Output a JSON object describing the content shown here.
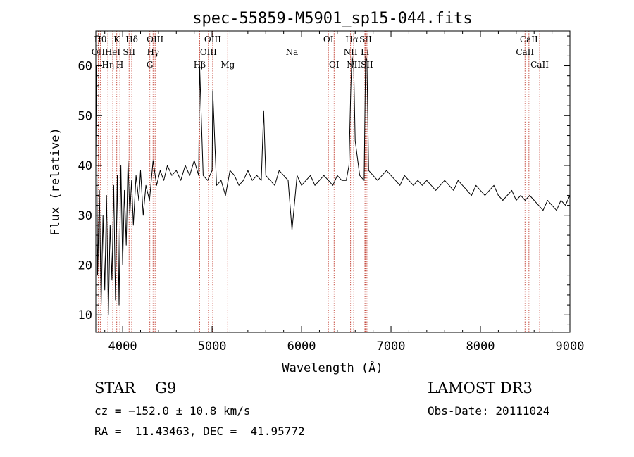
{
  "chart_data": {
    "type": "line",
    "title": "spec-55859-M5901_sp15-044.fits",
    "xlabel": "Wavelength (Å)",
    "ylabel": "Flux (relative)",
    "xlim": [
      3700,
      9000
    ],
    "ylim": [
      6.5,
      67
    ],
    "x_ticks": [
      4000,
      5000,
      6000,
      7000,
      8000,
      9000
    ],
    "y_ticks": [
      10,
      20,
      30,
      40,
      50,
      60
    ],
    "grid": false,
    "series": [
      {
        "name": "",
        "x": [
          3705,
          3720,
          3740,
          3760,
          3780,
          3800,
          3820,
          3840,
          3860,
          3880,
          3900,
          3920,
          3940,
          3960,
          3980,
          4000,
          4020,
          4040,
          4060,
          4080,
          4100,
          4120,
          4150,
          4180,
          4200,
          4230,
          4260,
          4300,
          4340,
          4380,
          4420,
          4460,
          4500,
          4550,
          4600,
          4650,
          4700,
          4750,
          4800,
          4850,
          4861,
          4900,
          4950,
          5000,
          5007,
          5050,
          5100,
          5150,
          5200,
          5250,
          5300,
          5350,
          5400,
          5450,
          5500,
          5550,
          5577,
          5600,
          5650,
          5700,
          5750,
          5800,
          5850,
          5893,
          5950,
          6000,
          6050,
          6100,
          6150,
          6200,
          6250,
          6300,
          6350,
          6400,
          6450,
          6500,
          6530,
          6550,
          6563,
          6583,
          6600,
          6650,
          6700,
          6716,
          6731,
          6750,
          6800,
          6850,
          6900,
          6950,
          7000,
          7050,
          7100,
          7150,
          7200,
          7250,
          7300,
          7350,
          7400,
          7450,
          7500,
          7550,
          7600,
          7650,
          7700,
          7750,
          7800,
          7850,
          7900,
          7950,
          8000,
          8050,
          8100,
          8150,
          8200,
          8250,
          8300,
          8350,
          8400,
          8450,
          8500,
          8550,
          8600,
          8650,
          8700,
          8750,
          8800,
          8850,
          8900,
          8950,
          9000
        ],
        "y": [
          60,
          18,
          35,
          12,
          30,
          15,
          34,
          10,
          28,
          17,
          36,
          13,
          38,
          12,
          40,
          20,
          35,
          24,
          41,
          30,
          37,
          28,
          38,
          33,
          39,
          30,
          36,
          33,
          41,
          36,
          39,
          37,
          40,
          38,
          39,
          37,
          40,
          38,
          41,
          38,
          60,
          38,
          37,
          39,
          55,
          36,
          37,
          34,
          39,
          38,
          36,
          37,
          39,
          37,
          38,
          37,
          51,
          38,
          37,
          36,
          39,
          38,
          37,
          27,
          38,
          36,
          37,
          38,
          36,
          37,
          38,
          37,
          36,
          38,
          37,
          37,
          40,
          55,
          62,
          60,
          45,
          38,
          37,
          62,
          61,
          39,
          38,
          37,
          38,
          39,
          38,
          37,
          36,
          38,
          37,
          36,
          37,
          36,
          37,
          36,
          35,
          36,
          37,
          36,
          35,
          37,
          36,
          35,
          34,
          36,
          35,
          34,
          35,
          36,
          34,
          33,
          34,
          35,
          33,
          34,
          33,
          34,
          33,
          32,
          31,
          33,
          32,
          31,
          33,
          32,
          34
        ]
      }
    ],
    "line_markers": [
      {
        "label": "OII",
        "wavelength": 3727,
        "row": 1
      },
      {
        "label": "Hθ",
        "wavelength": 3750,
        "row": 0
      },
      {
        "label": "Hη",
        "wavelength": 3835,
        "row": 2
      },
      {
        "label": "HeI",
        "wavelength": 3889,
        "row": 1
      },
      {
        "label": "K",
        "wavelength": 3934,
        "row": 0
      },
      {
        "label": "H",
        "wavelength": 3969,
        "row": 2
      },
      {
        "label": "SII",
        "wavelength": 4072,
        "row": 1
      },
      {
        "label": "Hδ",
        "wavelength": 4102,
        "row": 0
      },
      {
        "label": "OIII",
        "wavelength": 4363,
        "row": 0
      },
      {
        "label": "Hγ",
        "wavelength": 4340,
        "row": 1
      },
      {
        "label": "G",
        "wavelength": 4304,
        "row": 2
      },
      {
        "label": "Hβ",
        "wavelength": 4861,
        "row": 2
      },
      {
        "label": "OIII",
        "wavelength": 5007,
        "row": 0
      },
      {
        "label": "OIII",
        "wavelength": 4959,
        "row": 1
      },
      {
        "label": "Mg",
        "wavelength": 5175,
        "row": 2
      },
      {
        "label": "Na",
        "wavelength": 5893,
        "row": 1
      },
      {
        "label": "OI",
        "wavelength": 6300,
        "row": 0
      },
      {
        "label": "OI",
        "wavelength": 6364,
        "row": 2
      },
      {
        "label": "Hα",
        "wavelength": 6563,
        "row": 0
      },
      {
        "label": "NII",
        "wavelength": 6548,
        "row": 1
      },
      {
        "label": "NII",
        "wavelength": 6583,
        "row": 2
      },
      {
        "label": "SII",
        "wavelength": 6716,
        "row": 0
      },
      {
        "label": "Li",
        "wavelength": 6708,
        "row": 1
      },
      {
        "label": "SII",
        "wavelength": 6731,
        "row": 2
      },
      {
        "label": "CaII",
        "wavelength": 8542,
        "row": 0
      },
      {
        "label": "CaII",
        "wavelength": 8498,
        "row": 1
      },
      {
        "label": "CaII",
        "wavelength": 8662,
        "row": 2
      }
    ]
  },
  "footer": {
    "class_label": "STAR",
    "subclass_label": "G9",
    "survey": "LAMOST DR3",
    "cz": "cz = −152.0 ± 10.8 km/s",
    "obs_date": "Obs-Date: 20111024",
    "coords": "RA =  11.43463, DEC =  41.95772"
  }
}
